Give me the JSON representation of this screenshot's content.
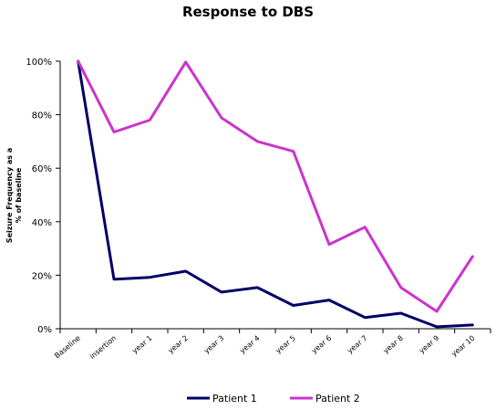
{
  "chart_data": {
    "type": "line",
    "title": "Response to DBS",
    "ylabel": "Seizure Frequency as a % of baseline",
    "ylabel_lines": [
      "Seizure Frequency as a",
      "% of baseline"
    ],
    "xlabel": "",
    "categories": [
      "Baseline",
      "insertion",
      "year 1",
      "year 2",
      "year 3",
      "year 4",
      "year 5",
      "year 6",
      "year 7",
      "year 8",
      "year 9",
      "year 10"
    ],
    "ylim": [
      0,
      100
    ],
    "yticks": [
      0,
      20,
      40,
      60,
      80,
      100
    ],
    "ytick_labels": [
      "0%",
      "20%",
      "40%",
      "60%",
      "80%",
      "100%"
    ],
    "grid": false,
    "legend_position": "bottom",
    "series": [
      {
        "name": "Patient 1",
        "color": "#000066",
        "values": [
          100,
          18.5,
          19.2,
          21.5,
          13.7,
          15.4,
          8.7,
          10.7,
          4.2,
          5.8,
          0.7,
          1.4
        ]
      },
      {
        "name": "Patient 2",
        "color": "#cc33cc",
        "values": [
          100,
          73.5,
          78.0,
          99.7,
          78.8,
          70.0,
          66.3,
          31.5,
          38.0,
          15.4,
          6.5,
          27.0
        ]
      }
    ]
  }
}
